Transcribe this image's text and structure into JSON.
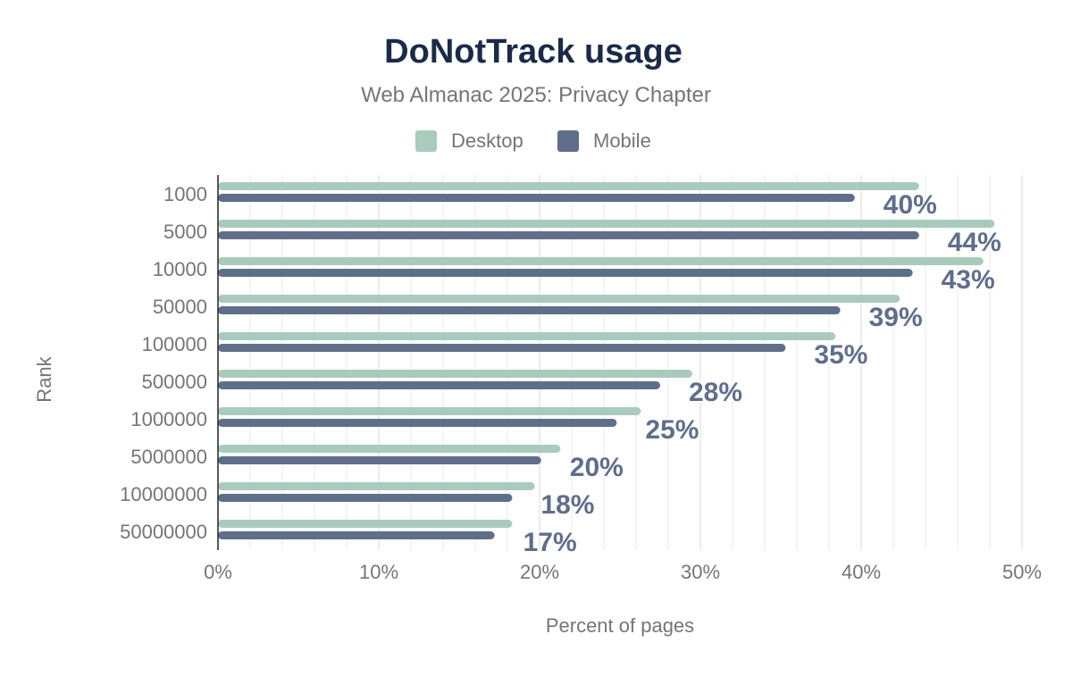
{
  "chart_data": {
    "type": "bar",
    "orientation": "horizontal",
    "title": "DoNotTrack usage",
    "subtitle": "Web Almanac 2025: Privacy Chapter",
    "xlabel": "Percent of pages",
    "ylabel": "Rank",
    "xlim": [
      0,
      50
    ],
    "xticks": [
      "0%",
      "10%",
      "20%",
      "30%",
      "40%",
      "50%"
    ],
    "grid": true,
    "legend_position": "top",
    "categories": [
      "1000",
      "5000",
      "10000",
      "50000",
      "100000",
      "500000",
      "1000000",
      "5000000",
      "10000000",
      "50000000"
    ],
    "series": [
      {
        "name": "Desktop",
        "color": "#a8cbbd",
        "values": [
          43.6,
          48.3,
          47.6,
          42.4,
          38.4,
          29.5,
          26.3,
          21.3,
          19.7,
          18.3
        ]
      },
      {
        "name": "Mobile",
        "color": "#5f6e8a",
        "values": [
          39.6,
          43.6,
          43.2,
          38.7,
          35.3,
          27.5,
          24.8,
          20.1,
          18.3,
          17.2
        ]
      }
    ],
    "data_labels": [
      "40%",
      "44%",
      "43%",
      "39%",
      "35%",
      "28%",
      "25%",
      "20%",
      "18%",
      "17%"
    ]
  }
}
